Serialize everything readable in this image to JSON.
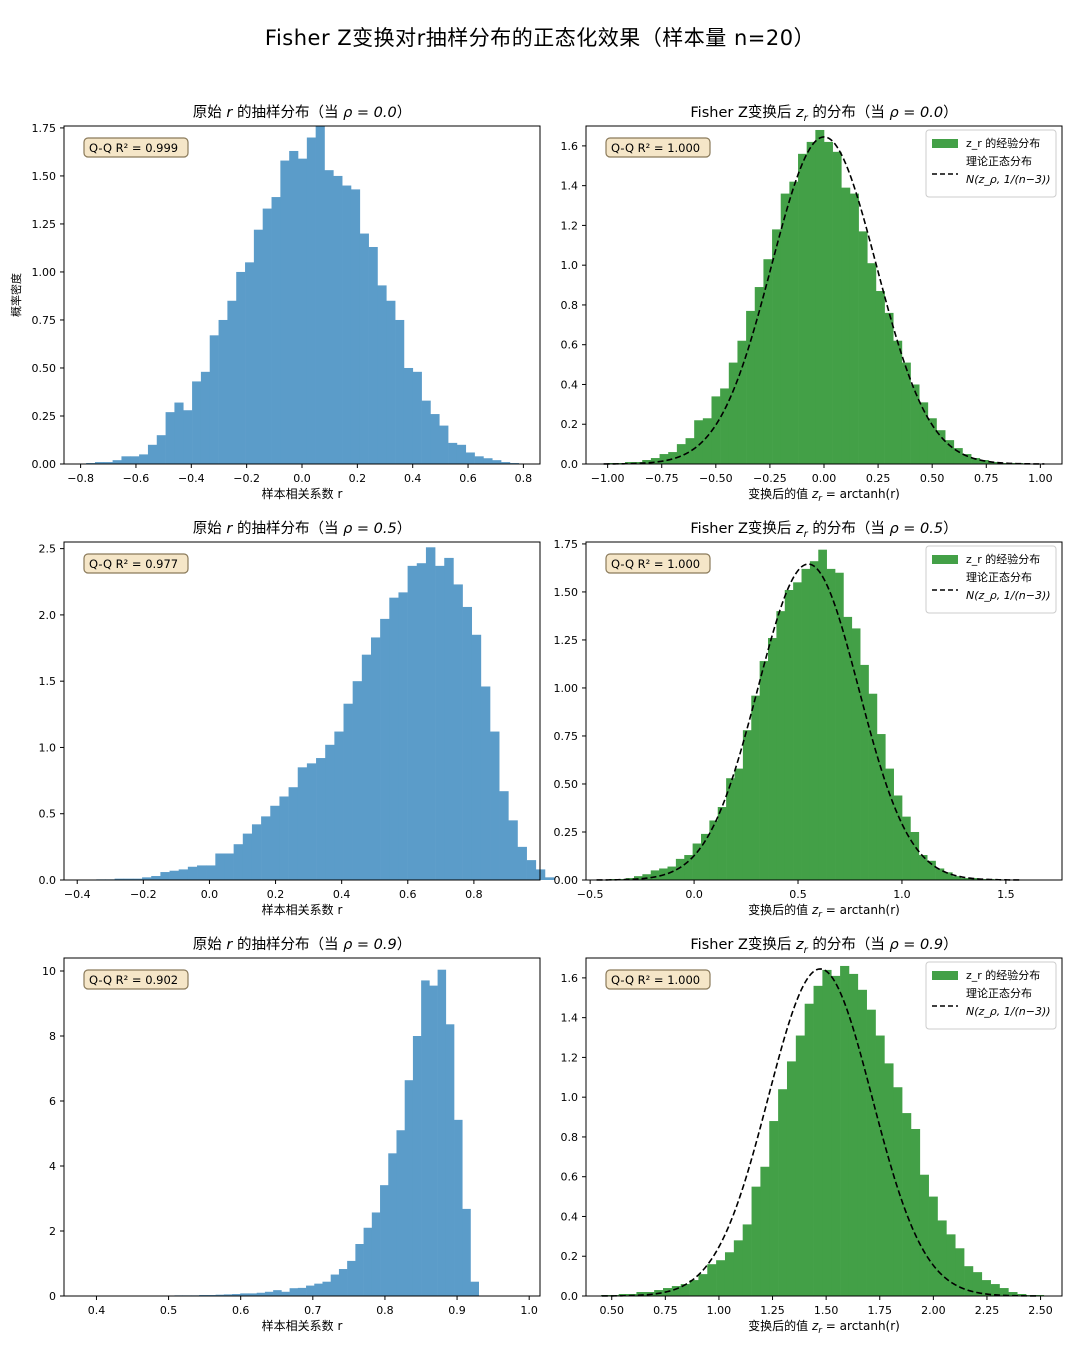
{
  "title": "Fisher Z变换对r抽样分布的正态化效果（样本量 n=20）",
  "colors": {
    "hist_r": "#5b9cc9",
    "hist_z": "#43a047",
    "curve": "#000000",
    "box_bg": "#f5e6c8",
    "box_edge": "#8a7a5a"
  },
  "chart_data": [
    {
      "type": "bar",
      "id": "r_rho00",
      "title_prefix": "原始 ",
      "title_var": "r",
      "title_suffix": " 的抽样分布（当 ",
      "title_rho": "ρ = 0.0",
      "title_end": "）",
      "xlabel": "样本相关系数  r",
      "ylabel": "概率密度",
      "xlim": [
        -0.86,
        0.86
      ],
      "ylim": [
        0,
        1.76
      ],
      "xticks": [
        -0.8,
        -0.6,
        -0.4,
        -0.2,
        0.0,
        0.2,
        0.4,
        0.6,
        0.8
      ],
      "xticklabels": [
        "−0.8",
        "−0.6",
        "−0.4",
        "−0.2",
        "0.0",
        "0.2",
        "0.4",
        "0.6",
        "0.8"
      ],
      "yticks": [
        0,
        0.25,
        0.5,
        0.75,
        1.0,
        1.25,
        1.5,
        1.75
      ],
      "yticklabels": [
        "0.00",
        "0.25",
        "0.50",
        "0.75",
        "1.00",
        "1.25",
        "1.50",
        "1.75"
      ],
      "bin_start": -0.78,
      "bin_width": 0.0319,
      "values": [
        0.005,
        0.01,
        0.01,
        0.02,
        0.04,
        0.04,
        0.05,
        0.1,
        0.15,
        0.27,
        0.32,
        0.28,
        0.43,
        0.48,
        0.67,
        0.75,
        0.85,
        1.0,
        1.05,
        1.22,
        1.33,
        1.39,
        1.58,
        1.63,
        1.59,
        1.7,
        1.76,
        1.53,
        1.5,
        1.45,
        1.43,
        1.2,
        1.13,
        0.93,
        0.85,
        0.75,
        0.5,
        0.48,
        0.33,
        0.26,
        0.2,
        0.11,
        0.1,
        0.06,
        0.04,
        0.03,
        0.02,
        0.01,
        0.005
      ],
      "annotation": "Q-Q R² = 0.999"
    },
    {
      "type": "bar",
      "id": "z_rho00",
      "title_prefix": "Fisher Z变换后 ",
      "title_var": "z",
      "title_var_sub": "r",
      "title_suffix": " 的分布（当 ",
      "title_rho": "ρ = 0.0",
      "title_end": "）",
      "xlabel_prefix": "变换后的值 ",
      "xlabel_var": "z",
      "xlabel_var_sub": "r",
      "xlabel_suffix": " = arctanh(r)",
      "xlim": [
        -1.1,
        1.1
      ],
      "ylim": [
        0,
        1.7
      ],
      "xticks": [
        -1.0,
        -0.75,
        -0.5,
        -0.25,
        0.0,
        0.25,
        0.5,
        0.75,
        1.0
      ],
      "xticklabels": [
        "−1.00",
        "−0.75",
        "−0.50",
        "−0.25",
        "0.00",
        "0.25",
        "0.50",
        "0.75",
        "1.00"
      ],
      "yticks": [
        0,
        0.2,
        0.4,
        0.6,
        0.8,
        1.0,
        1.2,
        1.4,
        1.6
      ],
      "yticklabels": [
        "0.0",
        "0.2",
        "0.4",
        "0.6",
        "0.8",
        "1.0",
        "1.2",
        "1.4",
        "1.6"
      ],
      "bin_start": -1.0,
      "bin_width": 0.04,
      "values": [
        0.005,
        0.005,
        0.01,
        0.01,
        0.02,
        0.03,
        0.05,
        0.06,
        0.1,
        0.13,
        0.22,
        0.23,
        0.34,
        0.38,
        0.51,
        0.62,
        0.77,
        0.89,
        1.03,
        1.18,
        1.36,
        1.42,
        1.56,
        1.62,
        1.68,
        1.62,
        1.57,
        1.39,
        1.36,
        1.17,
        1.01,
        0.87,
        0.76,
        0.62,
        0.51,
        0.4,
        0.31,
        0.23,
        0.17,
        0.12,
        0.08,
        0.05,
        0.03,
        0.02,
        0.01,
        0.005,
        0.005,
        0.005,
        0.002,
        0.002
      ],
      "curve_mu": 0.0,
      "curve_sd": 0.2425,
      "legend": {
        "hist": "z_r 的经验分布",
        "curve_line1": "理论正态分布",
        "curve_line2": "N(z_ρ, 1/(n−3))"
      },
      "annotation": "Q-Q R² = 1.000"
    },
    {
      "type": "bar",
      "id": "r_rho05",
      "title_prefix": "原始 ",
      "title_var": "r",
      "title_suffix": " 的抽样分布（当 ",
      "title_rho": "ρ = 0.5",
      "title_end": "）",
      "xlabel": "样本相关系数  r",
      "xlim": [
        -0.44,
        1.0
      ],
      "ylim": [
        0,
        2.55
      ],
      "xticks": [
        -0.4,
        -0.2,
        0.0,
        0.2,
        0.4,
        0.6,
        0.8
      ],
      "xticklabels": [
        "−0.4",
        "−0.2",
        "0.0",
        "0.2",
        "0.4",
        "0.6",
        "0.8"
      ],
      "yticks": [
        0,
        0.5,
        1.0,
        1.5,
        2.0,
        2.5
      ],
      "yticklabels": [
        "0.0",
        "0.5",
        "1.0",
        "1.5",
        "2.0",
        "2.5"
      ],
      "bin_start": -0.37,
      "bin_width": 0.0277,
      "values": [
        0.003,
        0.005,
        0.005,
        0.01,
        0.01,
        0.01,
        0.02,
        0.03,
        0.06,
        0.07,
        0.08,
        0.1,
        0.11,
        0.11,
        0.2,
        0.2,
        0.27,
        0.35,
        0.42,
        0.48,
        0.56,
        0.63,
        0.7,
        0.85,
        0.88,
        0.92,
        1.02,
        1.12,
        1.33,
        1.5,
        1.7,
        1.83,
        1.97,
        2.13,
        2.17,
        2.37,
        2.39,
        2.51,
        2.37,
        2.43,
        2.23,
        2.06,
        1.85,
        1.46,
        1.12,
        0.67,
        0.45,
        0.25,
        0.15,
        0.08,
        0.02
      ],
      "annotation": "Q-Q R² = 0.977"
    },
    {
      "type": "bar",
      "id": "z_rho05",
      "title_prefix": "Fisher Z变换后 ",
      "title_var": "z",
      "title_var_sub": "r",
      "title_suffix": " 的分布（当 ",
      "title_rho": "ρ = 0.5",
      "title_end": "）",
      "xlabel_prefix": "变换后的值 ",
      "xlabel_var": "z",
      "xlabel_var_sub": "r",
      "xlabel_suffix": " = arctanh(r)",
      "xlim": [
        -0.52,
        1.77
      ],
      "ylim": [
        0,
        1.76
      ],
      "xticks": [
        -0.5,
        0.0,
        0.5,
        1.0,
        1.5
      ],
      "xticklabels": [
        "−0.5",
        "0.0",
        "0.5",
        "1.0",
        "1.5"
      ],
      "yticks": [
        0,
        0.25,
        0.5,
        0.75,
        1.0,
        1.25,
        1.5,
        1.75
      ],
      "yticklabels": [
        "0.00",
        "0.25",
        "0.50",
        "0.75",
        "1.00",
        "1.25",
        "1.50",
        "1.75"
      ],
      "bin_start": -0.41,
      "bin_width": 0.0403,
      "values": [
        0.005,
        0.005,
        0.01,
        0.02,
        0.03,
        0.05,
        0.06,
        0.07,
        0.11,
        0.13,
        0.19,
        0.24,
        0.31,
        0.38,
        0.53,
        0.58,
        0.78,
        0.96,
        1.14,
        1.26,
        1.4,
        1.51,
        1.55,
        1.62,
        1.66,
        1.72,
        1.62,
        1.6,
        1.37,
        1.31,
        1.12,
        0.97,
        0.76,
        0.58,
        0.44,
        0.33,
        0.25,
        0.13,
        0.1,
        0.06,
        0.04,
        0.02,
        0.01,
        0.01,
        0.005,
        0.005,
        0.003,
        0.002,
        0.001
      ],
      "curve_mu": 0.5493,
      "curve_sd": 0.2425,
      "legend": {
        "hist": "z_r 的经验分布",
        "curve_line1": "理论正态分布",
        "curve_line2": "N(z_ρ, 1/(n−3))"
      },
      "annotation": "Q-Q R² = 1.000"
    },
    {
      "type": "bar",
      "id": "r_rho09",
      "title_prefix": "原始 ",
      "title_var": "r",
      "title_suffix": " 的抽样分布（当 ",
      "title_rho": "ρ = 0.9",
      "title_end": "）",
      "xlabel": "样本相关系数  r",
      "xlim": [
        0.355,
        1.015
      ],
      "ylim": [
        0,
        10.4
      ],
      "xticks": [
        0.4,
        0.5,
        0.6,
        0.7,
        0.8,
        0.9,
        1.0
      ],
      "xticklabels": [
        "0.4",
        "0.5",
        "0.6",
        "0.7",
        "0.8",
        "0.9",
        "1.0"
      ],
      "yticks": [
        0,
        2,
        4,
        6,
        8,
        10
      ],
      "yticklabels": [
        "0",
        "2",
        "4",
        "6",
        "8",
        "10"
      ],
      "bin_start": 0.36,
      "bin_width": 0.0114,
      "values": [
        0.005,
        0.005,
        0.005,
        0.005,
        0.005,
        0.005,
        0.005,
        0.005,
        0.005,
        0.01,
        0.01,
        0.01,
        0.01,
        0.02,
        0.02,
        0.02,
        0.03,
        0.03,
        0.04,
        0.05,
        0.06,
        0.08,
        0.08,
        0.1,
        0.13,
        0.18,
        0.13,
        0.24,
        0.25,
        0.32,
        0.38,
        0.44,
        0.66,
        0.83,
        1.08,
        1.6,
        2.1,
        2.57,
        3.41,
        4.39,
        5.1,
        6.64,
        8.0,
        9.71,
        9.55,
        10.04,
        8.36,
        5.42,
        2.68,
        0.44
      ],
      "annotation": "Q-Q R² = 0.902"
    },
    {
      "type": "bar",
      "id": "z_rho09",
      "title_prefix": "Fisher Z变换后 ",
      "title_var": "z",
      "title_var_sub": "r",
      "title_suffix": " 的分布（当 ",
      "title_rho": "ρ = 0.9",
      "title_end": "）",
      "xlabel_prefix": "变换后的值 ",
      "xlabel_var": "z",
      "xlabel_var_sub": "r",
      "xlabel_suffix": " = arctanh(r)",
      "xlim": [
        0.38,
        2.6
      ],
      "ylim": [
        0,
        1.7
      ],
      "xticks": [
        0.5,
        0.75,
        1.0,
        1.25,
        1.5,
        1.75,
        2.0,
        2.25,
        2.5
      ],
      "xticklabels": [
        "0.50",
        "0.75",
        "1.00",
        "1.25",
        "1.50",
        "1.75",
        "2.00",
        "2.25",
        "2.50"
      ],
      "yticks": [
        0,
        0.2,
        0.4,
        0.6,
        0.8,
        1.0,
        1.2,
        1.4,
        1.6
      ],
      "yticklabels": [
        "0.0",
        "0.2",
        "0.4",
        "0.6",
        "0.8",
        "1.0",
        "1.2",
        "1.4",
        "1.6"
      ],
      "bin_start": 0.45,
      "bin_width": 0.0413,
      "values": [
        0.005,
        0.005,
        0.01,
        0.01,
        0.02,
        0.02,
        0.03,
        0.04,
        0.05,
        0.06,
        0.08,
        0.11,
        0.16,
        0.18,
        0.22,
        0.28,
        0.36,
        0.55,
        0.65,
        0.88,
        1.04,
        1.18,
        1.31,
        1.47,
        1.56,
        1.64,
        1.61,
        1.66,
        1.62,
        1.54,
        1.44,
        1.31,
        1.17,
        1.05,
        0.92,
        0.84,
        0.61,
        0.5,
        0.38,
        0.31,
        0.24,
        0.15,
        0.12,
        0.08,
        0.06,
        0.04,
        0.02,
        0.01,
        0.005,
        0.005
      ],
      "curve_mu": 1.4722,
      "curve_sd": 0.2425,
      "legend": {
        "hist": "z_r 的经验分布",
        "curve_line1": "理论正态分布",
        "curve_line2": "N(z_ρ, 1/(n−3))"
      },
      "annotation": "Q-Q R² = 1.000"
    }
  ]
}
